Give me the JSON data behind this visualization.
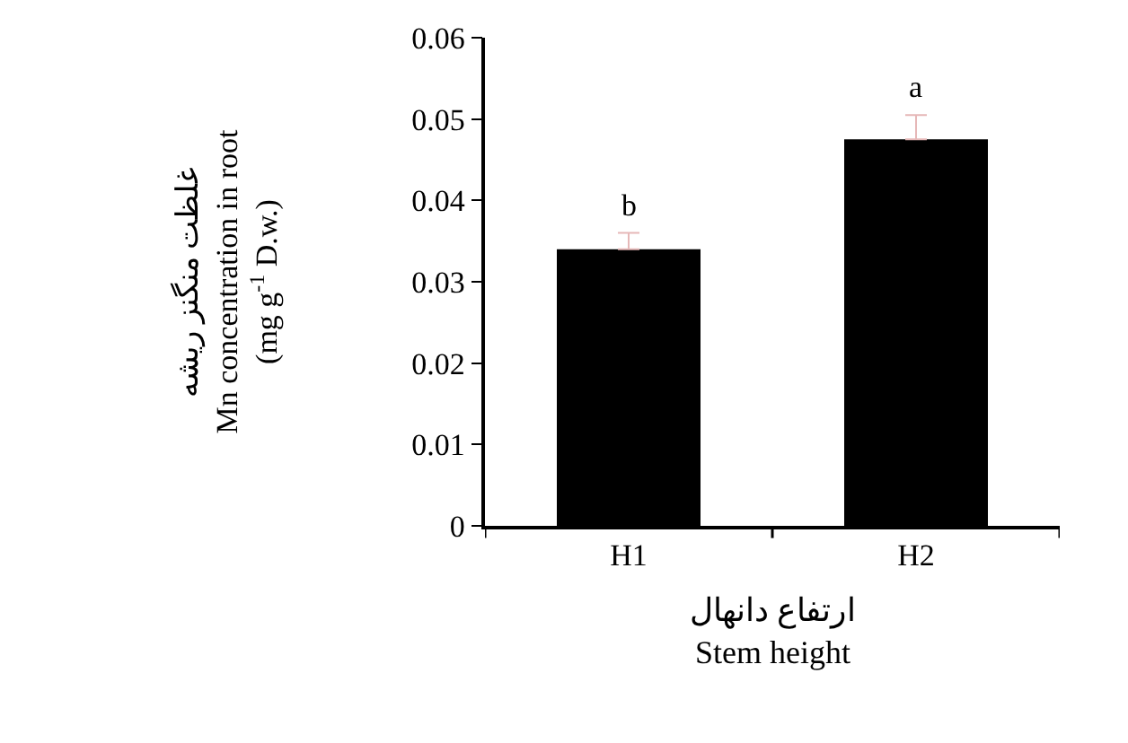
{
  "chart_data": {
    "type": "bar",
    "categories": [
      "H1",
      "H2"
    ],
    "values": [
      0.034,
      0.0475
    ],
    "color": "#000000",
    "errors": [
      [
        0.034,
        0.036
      ],
      [
        0.0475,
        0.0505
      ]
    ],
    "ylabel": "غلظت منگنز ریشه\nMn concentration in root\n(mg g$^{-1}$ D.w.)",
    "xlabel": "ارتفاع دانهال\nStem height",
    "annotations": [
      {
        "text": "b",
        "x": "H1",
        "y": 0.036
      },
      {
        "text": "a",
        "x": "H2",
        "y": 0.0505
      }
    ],
    "ylim": [
      0,
      0.06
    ],
    "yticks": [
      {
        "value": 0,
        "label": "0"
      },
      0.01,
      0.02,
      0.03,
      0.04,
      0.05,
      0.06
    ]
  }
}
